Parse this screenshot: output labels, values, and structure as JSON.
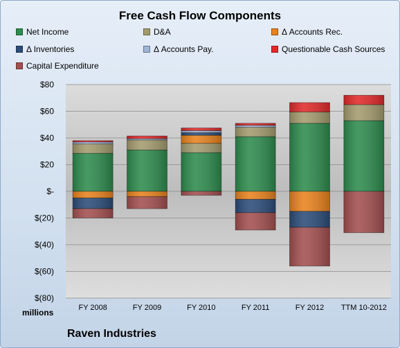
{
  "chart_data": {
    "type": "bar",
    "stacked": true,
    "title": "Free Cash Flow Components",
    "units_label": "millions",
    "company": "Raven Industries",
    "categories": [
      "FY 2008",
      "FY 2009",
      "FY 2010",
      "FY 2011",
      "FY 2012",
      "TTM 10-2012"
    ],
    "y_ticks": [
      "$80",
      "$60",
      "$40",
      "$20",
      "$-",
      "$(20)",
      "$(40)",
      "$(60)",
      "$(80)"
    ],
    "ylim": [
      -80,
      80
    ],
    "grid": true,
    "legend_position": "top",
    "series": [
      {
        "name": "Net Income",
        "color": "#2e8b4e",
        "values": [
          28.5,
          31,
          29,
          41,
          51,
          53
        ]
      },
      {
        "name": "D&A",
        "color": "#a39b6e",
        "values": [
          7,
          7.5,
          7,
          7,
          8.5,
          12
        ]
      },
      {
        "name": "Δ Accounts Rec.",
        "color": "#e8821e",
        "values": [
          -5,
          -4,
          6,
          -6,
          -15,
          0
        ]
      },
      {
        "name": "Δ Inventories",
        "color": "#2c4c78",
        "values": [
          -8,
          0,
          2,
          -10,
          -12,
          0
        ]
      },
      {
        "name": "Δ Accounts Pay.",
        "color": "#9fb4d4",
        "values": [
          1.5,
          1,
          1.5,
          1.5,
          0,
          0
        ]
      },
      {
        "name": "Questionable Cash Sources",
        "color": "#e02a2a",
        "values": [
          1,
          2,
          2,
          1.5,
          7,
          7
        ]
      },
      {
        "name": "Capital Expenditure",
        "color": "#a34f4f",
        "values": [
          -7,
          -9,
          -3,
          -13,
          -29,
          -31
        ]
      }
    ]
  }
}
